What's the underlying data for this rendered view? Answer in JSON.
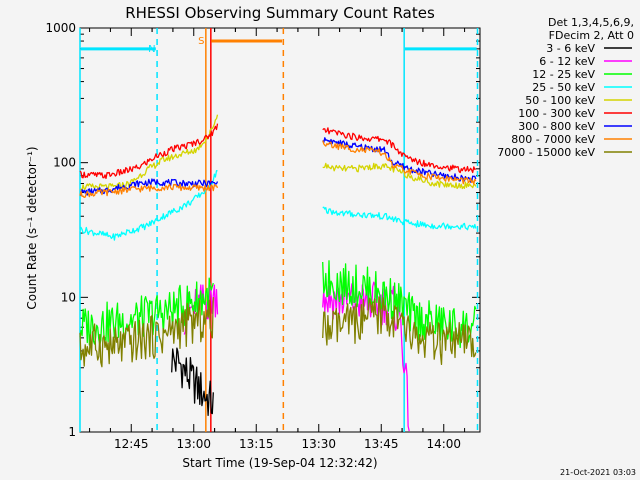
{
  "chart_data": {
    "type": "line",
    "title": "RHESSI Observing Summary Count Rates",
    "xlabel": "Start Time (19-Sep-04 12:32:42)",
    "ylabel": "Count Rate (s⁻¹ detector⁻¹)",
    "x_unit": "minutes after 12:32:42",
    "xlim": [
      0,
      96
    ],
    "ylim": [
      1,
      1000
    ],
    "yscale": "log",
    "y_ticks": [
      "1",
      "10",
      "100",
      "1000"
    ],
    "x_ticks": [
      {
        "label": "12:45",
        "t": 12.3
      },
      {
        "label": "13:00",
        "t": 27.3
      },
      {
        "label": "13:15",
        "t": 42.3
      },
      {
        "label": "13:30",
        "t": 57.3
      },
      {
        "label": "13:45",
        "t": 72.3
      },
      {
        "label": "14:00",
        "t": 87.3
      }
    ],
    "legend": {
      "header": [
        "Det 1,3,4,5,6,9,",
        "FDecim 2, Att 0"
      ],
      "placement": "outside-right"
    },
    "gap": [
      34.5,
      57.5
    ],
    "series": [
      {
        "name": "3 - 6 keV",
        "color": "#000000",
        "points": [
          [
            22,
            3.5
          ],
          [
            24,
            3.2
          ],
          [
            26,
            2.6
          ],
          [
            28,
            2.2
          ],
          [
            32,
            1.6
          ]
        ]
      },
      {
        "name": "6 - 12 keV",
        "color": "#ff00ff",
        "points": [
          [
            25,
            7.5
          ],
          [
            28,
            8.5
          ],
          [
            31,
            9.5
          ],
          [
            33,
            10.5
          ],
          [
            58,
            10
          ],
          [
            63,
            9.5
          ],
          [
            68,
            9.2
          ],
          [
            73,
            9.0
          ],
          [
            75,
            8.8
          ],
          [
            77,
            6.5
          ],
          [
            79,
            1.2
          ]
        ]
      },
      {
        "name": "12 - 25 keV",
        "color": "#00ff00",
        "points": [
          [
            0,
            6
          ],
          [
            8,
            6.5
          ],
          [
            14,
            7
          ],
          [
            18,
            7.5
          ],
          [
            22,
            8
          ],
          [
            26,
            9
          ],
          [
            30,
            10
          ],
          [
            32,
            10.5
          ],
          [
            58,
            14
          ],
          [
            63,
            12.5
          ],
          [
            68,
            12
          ],
          [
            73,
            10.5
          ],
          [
            76,
            9.5
          ],
          [
            80,
            7
          ],
          [
            85,
            6.5
          ],
          [
            90,
            6
          ],
          [
            95,
            6
          ]
        ]
      },
      {
        "name": "25 - 50 keV",
        "color": "#00ffff",
        "points": [
          [
            0,
            32
          ],
          [
            4,
            30
          ],
          [
            8,
            28
          ],
          [
            12,
            31
          ],
          [
            16,
            34
          ],
          [
            20,
            40
          ],
          [
            24,
            46
          ],
          [
            27,
            52
          ],
          [
            30,
            62
          ],
          [
            32,
            75
          ],
          [
            33,
            90
          ],
          [
            58,
            45
          ],
          [
            63,
            42
          ],
          [
            68,
            41
          ],
          [
            73,
            40
          ],
          [
            78,
            36
          ],
          [
            84,
            34
          ],
          [
            90,
            34
          ],
          [
            95,
            33
          ]
        ]
      },
      {
        "name": "50 - 100 keV",
        "color": "#d4d400",
        "points": [
          [
            0,
            66
          ],
          [
            8,
            66
          ],
          [
            12,
            70
          ],
          [
            16,
            88
          ],
          [
            20,
            105
          ],
          [
            24,
            115
          ],
          [
            28,
            125
          ],
          [
            31,
            160
          ],
          [
            33,
            225
          ],
          [
            58,
            95
          ],
          [
            62,
            90
          ],
          [
            66,
            90
          ],
          [
            72,
            95
          ],
          [
            75,
            90
          ],
          [
            80,
            78
          ],
          [
            85,
            70
          ],
          [
            90,
            68
          ],
          [
            95,
            68
          ]
        ]
      },
      {
        "name": "100 - 300 keV",
        "color": "#ff0000",
        "points": [
          [
            0,
            82
          ],
          [
            6,
            80
          ],
          [
            10,
            85
          ],
          [
            14,
            92
          ],
          [
            18,
            110
          ],
          [
            22,
            125
          ],
          [
            26,
            135
          ],
          [
            30,
            150
          ],
          [
            32,
            170
          ],
          [
            33,
            190
          ],
          [
            58,
            175
          ],
          [
            62,
            165
          ],
          [
            66,
            155
          ],
          [
            70,
            150
          ],
          [
            73,
            150
          ],
          [
            75,
            135
          ],
          [
            78,
            110
          ],
          [
            82,
            100
          ],
          [
            86,
            95
          ],
          [
            90,
            90
          ],
          [
            95,
            88
          ]
        ]
      },
      {
        "name": "300 - 800 keV",
        "color": "#0000ff",
        "points": [
          [
            0,
            60
          ],
          [
            6,
            62
          ],
          [
            10,
            66
          ],
          [
            14,
            70
          ],
          [
            18,
            72
          ],
          [
            22,
            71
          ],
          [
            26,
            70
          ],
          [
            30,
            70
          ],
          [
            33,
            70
          ],
          [
            58,
            150
          ],
          [
            62,
            140
          ],
          [
            66,
            132
          ],
          [
            70,
            128
          ],
          [
            73,
            125
          ],
          [
            75,
            100
          ],
          [
            80,
            88
          ],
          [
            85,
            82
          ],
          [
            90,
            78
          ],
          [
            95,
            75
          ]
        ]
      },
      {
        "name": "800 - 7000 keV",
        "color": "#ff8000",
        "points": [
          [
            0,
            58
          ],
          [
            6,
            60
          ],
          [
            10,
            62
          ],
          [
            14,
            64
          ],
          [
            18,
            65
          ],
          [
            22,
            66
          ],
          [
            26,
            65
          ],
          [
            30,
            65
          ],
          [
            33,
            65
          ],
          [
            58,
            140
          ],
          [
            62,
            132
          ],
          [
            66,
            126
          ],
          [
            70,
            122
          ],
          [
            73,
            118
          ],
          [
            75,
            95
          ],
          [
            80,
            84
          ],
          [
            85,
            78
          ],
          [
            90,
            75
          ],
          [
            95,
            72
          ]
        ]
      },
      {
        "name": "7000 - 15000 keV",
        "color": "#808000",
        "points": [
          [
            0,
            4
          ],
          [
            4,
            4.5
          ],
          [
            8,
            4.2
          ],
          [
            12,
            4.5
          ],
          [
            16,
            5
          ],
          [
            20,
            5.2
          ],
          [
            24,
            6
          ],
          [
            28,
            6.5
          ],
          [
            32,
            7
          ],
          [
            58,
            5.5
          ],
          [
            62,
            6
          ],
          [
            66,
            6.5
          ],
          [
            70,
            7
          ],
          [
            73,
            7.5
          ],
          [
            76,
            6.5
          ],
          [
            80,
            5
          ],
          [
            85,
            4.5
          ],
          [
            90,
            4.5
          ],
          [
            95,
            4.5
          ]
        ]
      }
    ],
    "vertical_lines": [
      {
        "t": 0,
        "color": "#00e5ff",
        "style": "solid"
      },
      {
        "t": 18.5,
        "color": "#00e5ff",
        "style": "dashed"
      },
      {
        "t": 30.2,
        "color": "#ff8000",
        "style": "solid"
      },
      {
        "t": 31.4,
        "color": "#ff0000",
        "style": "solid"
      },
      {
        "t": 48.8,
        "color": "#ff8000",
        "style": "dashed"
      },
      {
        "t": 77.8,
        "color": "#00e5ff",
        "style": "solid"
      },
      {
        "t": 95.4,
        "color": "#00e5ff",
        "style": "dashed"
      }
    ],
    "flag_bars": [
      {
        "label": "N",
        "color": "#00e5ff",
        "t_start": 0.2,
        "t_end": 18.2,
        "y": 700
      },
      {
        "label": "S",
        "color": "#ff8000",
        "t_start": 31.5,
        "t_end": 48.5,
        "y": 800
      },
      {
        "label": "",
        "color": "#00e5ff",
        "t_start": 78,
        "t_end": 95.2,
        "y": 700
      }
    ],
    "timestamp": "21-Oct-2021 03:03"
  }
}
